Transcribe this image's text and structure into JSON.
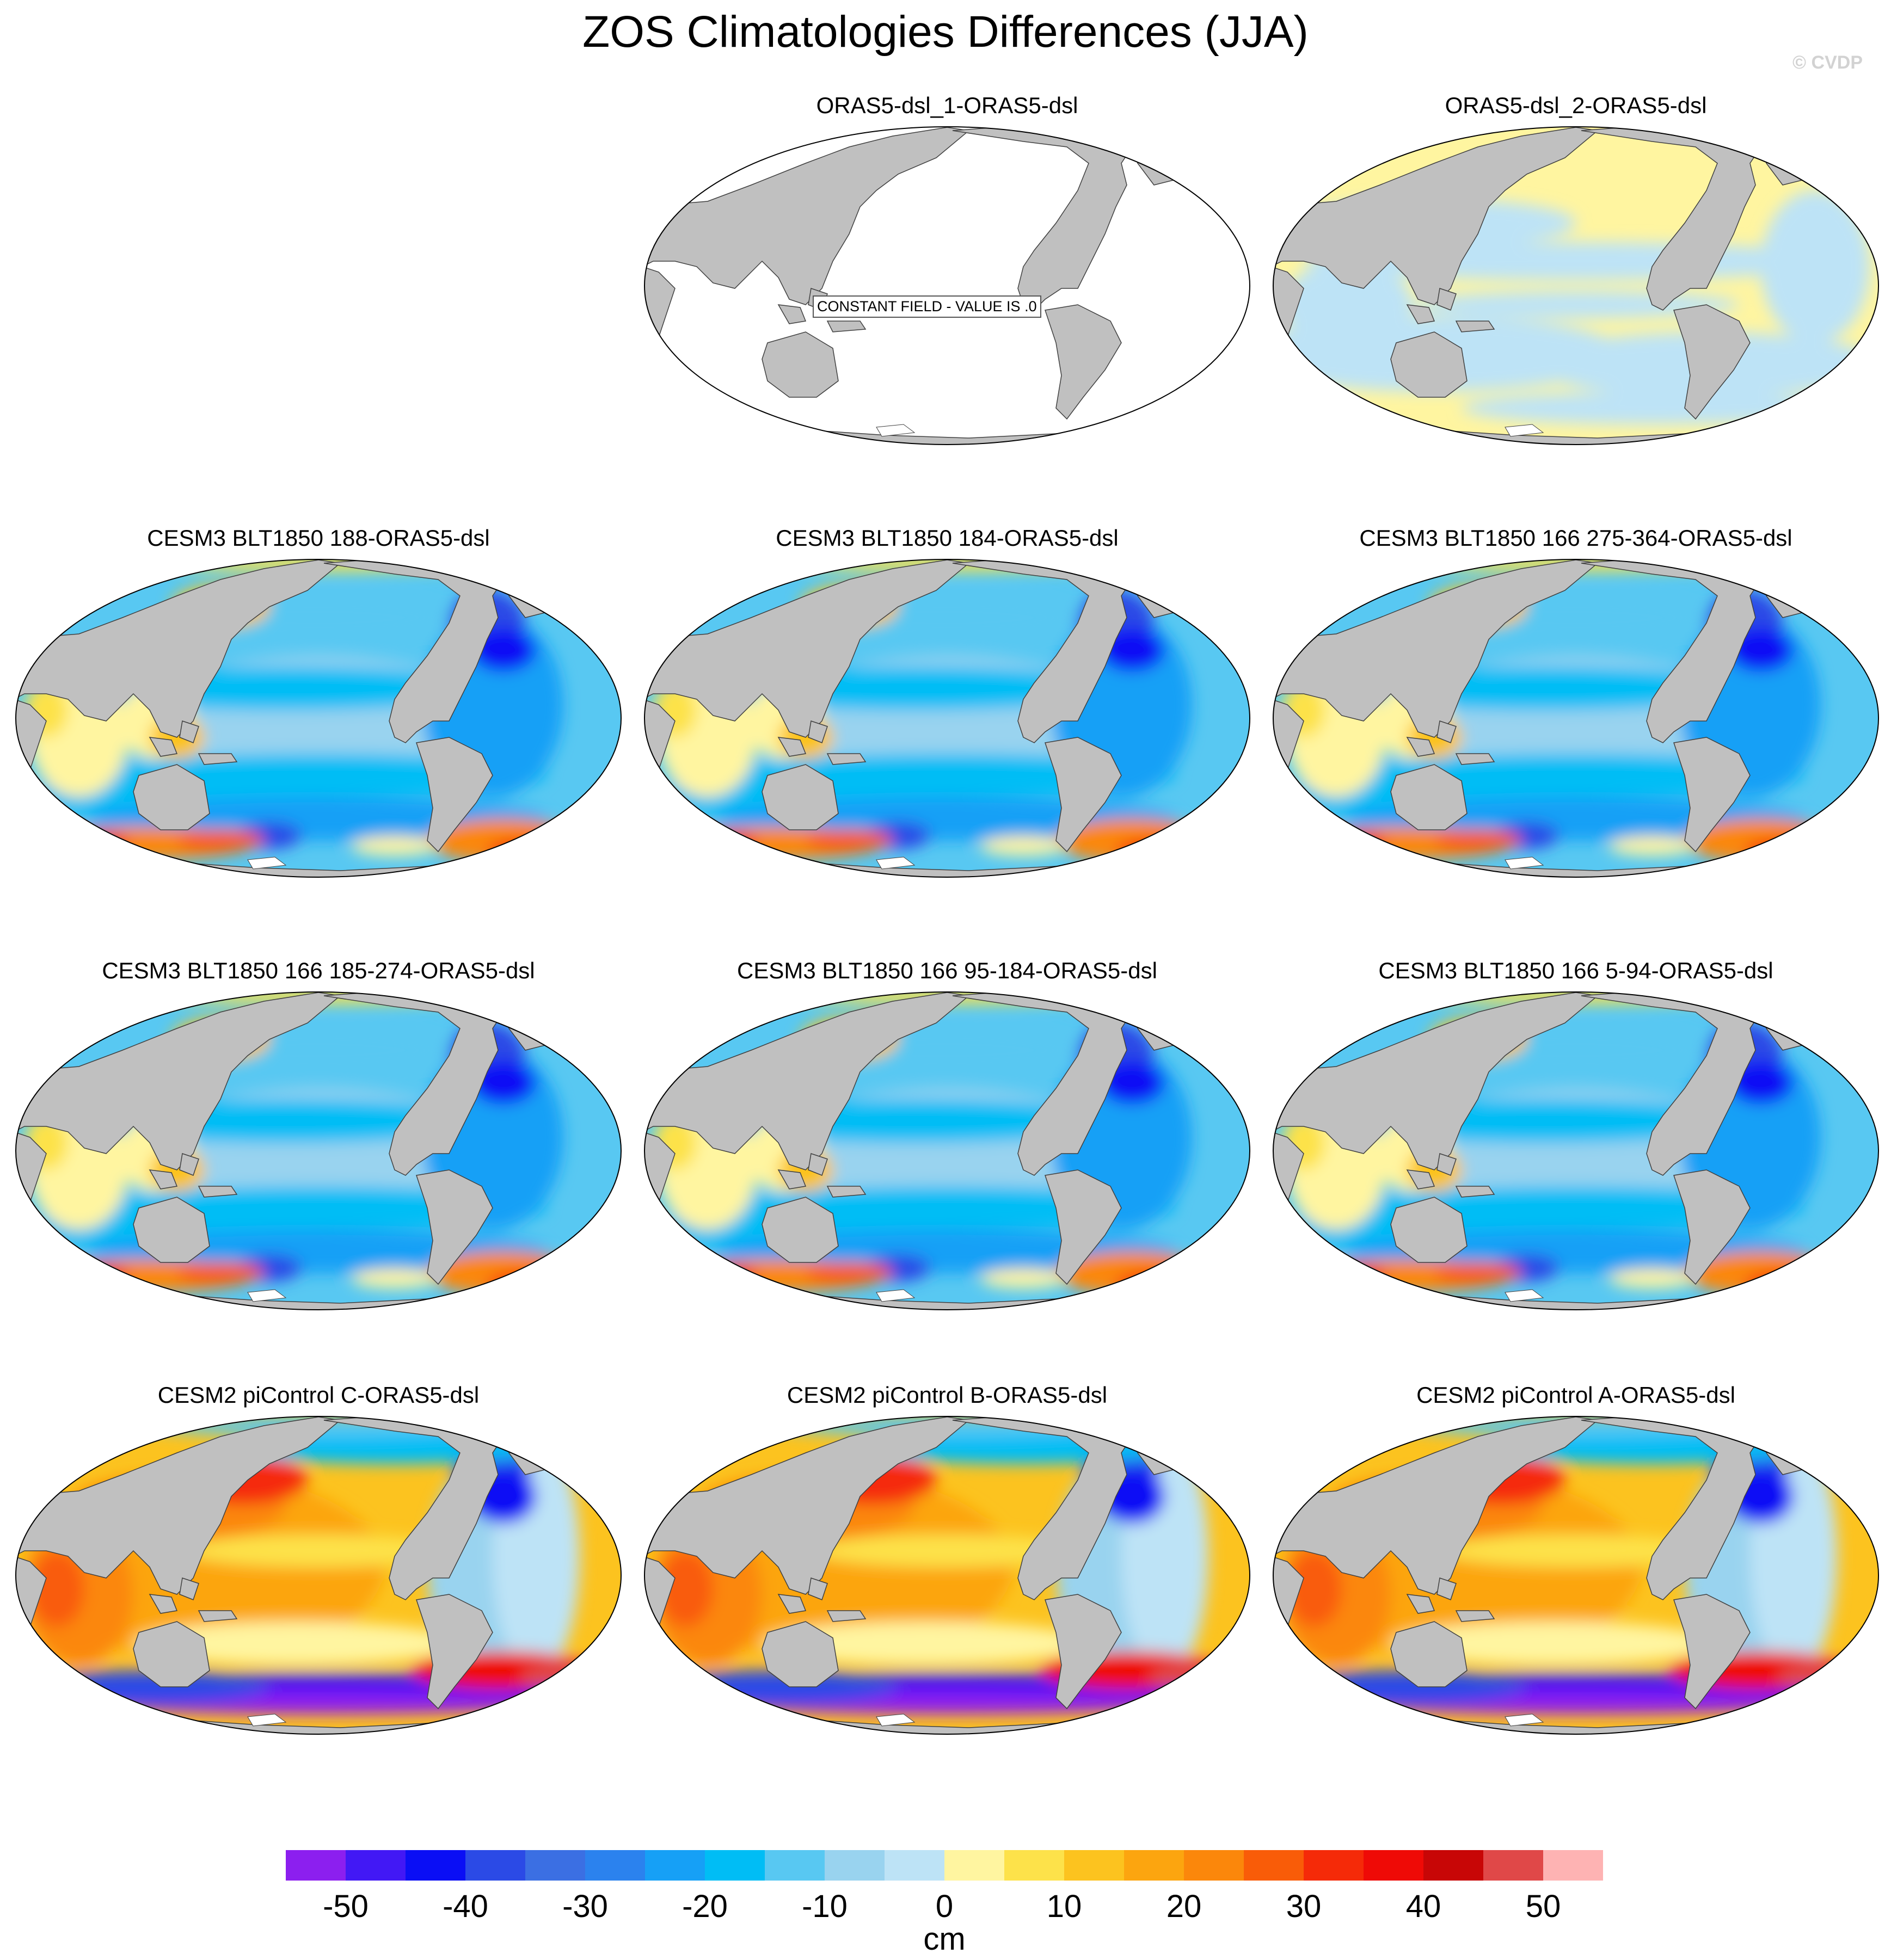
{
  "title": "ZOS Climatologies Differences (JJA)",
  "copyright": "© CVDP",
  "colors": {
    "land": "#c0c0c0",
    "coast": "#404040",
    "ocean_blank": "#ffffff",
    "scale": [
      "#8c1fef",
      "#4218f5",
      "#0a0ef5",
      "#2b4ae6",
      "#3b6fe3",
      "#2b82ee",
      "#16a0f6",
      "#00bdf5",
      "#58c8f2",
      "#99d3ef",
      "#bde3f6",
      "#fff5a0",
      "#fde24a",
      "#fcc31f",
      "#fca50f",
      "#fb870b",
      "#f95c08",
      "#f52a08",
      "#ef0a06",
      "#c80606",
      "#e04848",
      "#feb3b3"
    ]
  },
  "panels": [
    {
      "title": "ORAS5-dsl_1-ORAS5-dsl",
      "pattern": "constant",
      "note": "CONSTANT FIELD - VALUE IS .0"
    },
    {
      "title": "ORAS5-dsl_2-ORAS5-dsl",
      "pattern": "light"
    },
    {
      "title": "CESM3 BLT1850 188-ORAS5-dsl",
      "pattern": "blt"
    },
    {
      "title": "CESM3 BLT1850 184-ORAS5-dsl",
      "pattern": "blt"
    },
    {
      "title": "CESM3 BLT1850 166 275-364-ORAS5-dsl",
      "pattern": "blt"
    },
    {
      "title": "CESM3 BLT1850 166 185-274-ORAS5-dsl",
      "pattern": "blt"
    },
    {
      "title": "CESM3 BLT1850 166 95-184-ORAS5-dsl",
      "pattern": "blt"
    },
    {
      "title": "CESM3 BLT1850 166 5-94-ORAS5-dsl",
      "pattern": "blt"
    },
    {
      "title": "CESM2 piControl C-ORAS5-dsl",
      "pattern": "cesm2"
    },
    {
      "title": "CESM2 piControl B-ORAS5-dsl",
      "pattern": "cesm2"
    },
    {
      "title": "CESM2 piControl A-ORAS5-dsl",
      "pattern": "cesm2"
    }
  ],
  "colorbar": {
    "ticks": [
      "-50",
      "-40",
      "-30",
      "-20",
      "-10",
      "0",
      "10",
      "20",
      "30",
      "40",
      "50"
    ],
    "units": "cm"
  }
}
